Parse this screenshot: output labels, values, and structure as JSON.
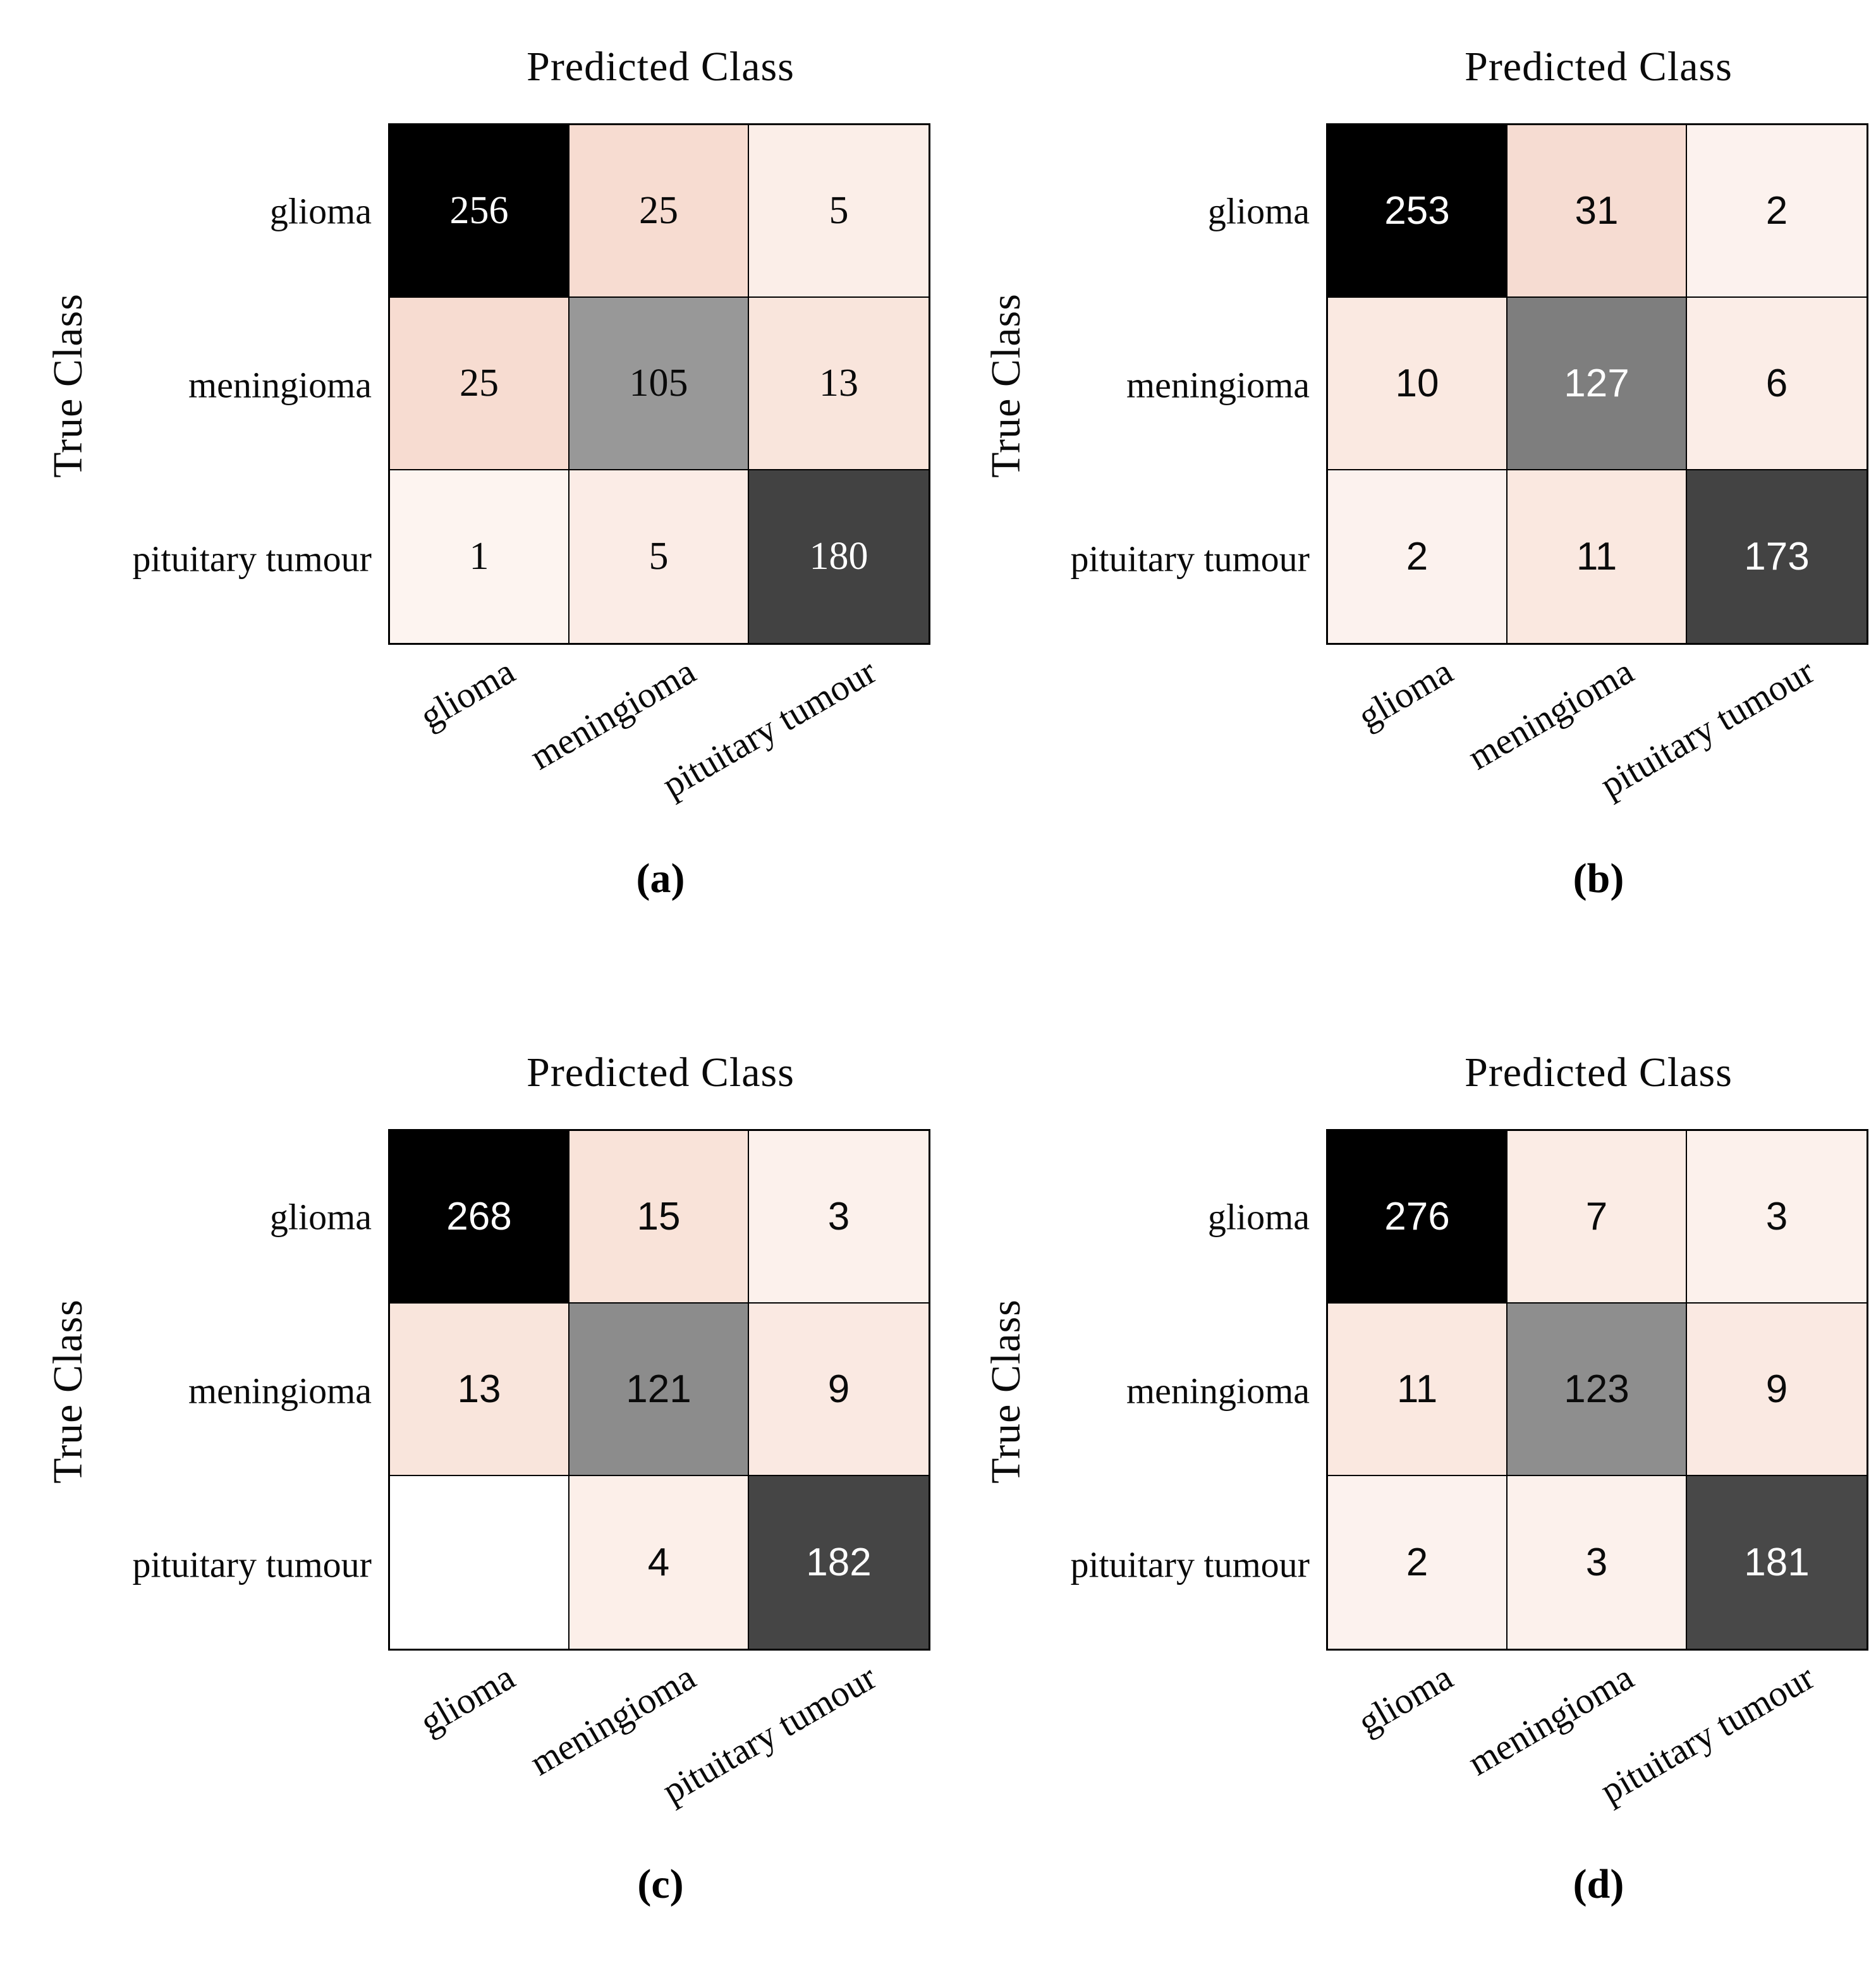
{
  "figure": {
    "type": "confusion-matrix-comparison",
    "background": "#ffffff",
    "classes": [
      "glioma",
      "meningioma",
      "pituitary tumour"
    ],
    "x_axis_title": "Predicted Class",
    "y_axis_title": "True Class",
    "captions": [
      "(a)",
      "(b)",
      "(c)",
      "(d)"
    ]
  },
  "chart_data": [
    {
      "type": "heatmap",
      "title": "Predicted Class",
      "xlabel": "Predicted Class",
      "ylabel": "True Class",
      "caption": "(a)",
      "x_categories": [
        "glioma",
        "meningioma",
        "pituitary tumour"
      ],
      "y_categories": [
        "glioma",
        "meningioma",
        "pituitary tumour"
      ],
      "matrix": [
        [
          256,
          25,
          5
        ],
        [
          25,
          105,
          13
        ],
        [
          1,
          5,
          180
        ]
      ],
      "legend": "none",
      "grid": "on"
    },
    {
      "type": "heatmap",
      "title": "Predicted Class",
      "xlabel": "Predicted Class",
      "ylabel": "True Class",
      "caption": "(b)",
      "x_categories": [
        "glioma",
        "meningioma",
        "pituitary tumour"
      ],
      "y_categories": [
        "glioma",
        "meningioma",
        "pituitary tumour"
      ],
      "matrix": [
        [
          253,
          31,
          2
        ],
        [
          10,
          127,
          6
        ],
        [
          2,
          11,
          173
        ]
      ],
      "legend": "none",
      "grid": "on"
    },
    {
      "type": "heatmap",
      "title": "Predicted Class",
      "xlabel": "Predicted Class",
      "ylabel": "True Class",
      "caption": "(c)",
      "x_categories": [
        "glioma",
        "meningioma",
        "pituitary tumour"
      ],
      "y_categories": [
        "glioma",
        "meningioma",
        "pituitary tumour"
      ],
      "matrix": [
        [
          268,
          15,
          3
        ],
        [
          13,
          121,
          9
        ],
        [
          0,
          4,
          182
        ]
      ],
      "blank_cells": [
        [
          2,
          0
        ]
      ],
      "legend": "none",
      "grid": "on"
    },
    {
      "type": "heatmap",
      "title": "Predicted Class",
      "xlabel": "Predicted Class",
      "ylabel": "True Class",
      "caption": "(d)",
      "x_categories": [
        "glioma",
        "meningioma",
        "pituitary tumour"
      ],
      "y_categories": [
        "glioma",
        "meningioma",
        "pituitary tumour"
      ],
      "matrix": [
        [
          276,
          7,
          3
        ],
        [
          11,
          123,
          9
        ],
        [
          2,
          3,
          181
        ]
      ],
      "legend": "none",
      "grid": "on"
    }
  ],
  "panels": [
    {
      "caption": "(a)",
      "title": "Predicted Class",
      "y_axis_label": "True Class",
      "row_labels": [
        "glioma",
        "meningioma",
        "pituitary tumour"
      ],
      "col_labels": [
        "glioma",
        "meningioma",
        "pituitary tumour"
      ],
      "cells": [
        [
          {
            "value": "256",
            "bg": "#000000",
            "fg": "#ffffff"
          },
          {
            "value": "25",
            "bg": "#f7dcd1",
            "fg": "#0a0a0a"
          },
          {
            "value": "5",
            "bg": "#fbeee8",
            "fg": "#0a0a0a"
          }
        ],
        [
          {
            "value": "25",
            "bg": "#f7dcd1",
            "fg": "#0a0a0a"
          },
          {
            "value": "105",
            "bg": "#989898",
            "fg": "#0a0a0a"
          },
          {
            "value": "13",
            "bg": "#f9e5dc",
            "fg": "#0a0a0a"
          }
        ],
        [
          {
            "value": "1",
            "bg": "#fdf4f0",
            "fg": "#0a0a0a"
          },
          {
            "value": "5",
            "bg": "#fbece6",
            "fg": "#0a0a0a"
          },
          {
            "value": "180",
            "bg": "#424242",
            "fg": "#ffffff"
          }
        ]
      ]
    },
    {
      "caption": "(b)",
      "title": "Predicted Class",
      "y_axis_label": "True Class",
      "row_labels": [
        "glioma",
        "meningioma",
        "pituitary tumour"
      ],
      "col_labels": [
        "glioma",
        "meningioma",
        "pituitary tumour"
      ],
      "cells": [
        [
          {
            "value": "253",
            "bg": "#000000",
            "fg": "#ffffff"
          },
          {
            "value": "31",
            "bg": "#f6dcd2",
            "fg": "#0a0a0a"
          },
          {
            "value": "2",
            "bg": "#fcf2ee",
            "fg": "#0a0a0a"
          }
        ],
        [
          {
            "value": "10",
            "bg": "#fae9e1",
            "fg": "#0a0a0a"
          },
          {
            "value": "127",
            "bg": "#7e7e7e",
            "fg": "#ffffff"
          },
          {
            "value": "6",
            "bg": "#fbede7",
            "fg": "#0a0a0a"
          }
        ],
        [
          {
            "value": "2",
            "bg": "#fcf2ee",
            "fg": "#0a0a0a"
          },
          {
            "value": "11",
            "bg": "#fae8e0",
            "fg": "#0a0a0a"
          },
          {
            "value": "173",
            "bg": "#434343",
            "fg": "#ffffff"
          }
        ]
      ]
    },
    {
      "caption": "(c)",
      "title": "Predicted Class",
      "y_axis_label": "True Class",
      "row_labels": [
        "glioma",
        "meningioma",
        "pituitary tumour"
      ],
      "col_labels": [
        "glioma",
        "meningioma",
        "pituitary tumour"
      ],
      "cells": [
        [
          {
            "value": "268",
            "bg": "#000000",
            "fg": "#ffffff"
          },
          {
            "value": "15",
            "bg": "#f9e3d9",
            "fg": "#0a0a0a"
          },
          {
            "value": "3",
            "bg": "#fcf1ec",
            "fg": "#0a0a0a"
          }
        ],
        [
          {
            "value": "13",
            "bg": "#f9e5dc",
            "fg": "#0a0a0a"
          },
          {
            "value": "121",
            "bg": "#8c8c8c",
            "fg": "#0a0a0a"
          },
          {
            "value": "9",
            "bg": "#fae9e2",
            "fg": "#0a0a0a"
          }
        ],
        [
          {
            "value": "",
            "bg": "#ffffff",
            "fg": "#0a0a0a"
          },
          {
            "value": "4",
            "bg": "#fcefe9",
            "fg": "#0a0a0a"
          },
          {
            "value": "182",
            "bg": "#454545",
            "fg": "#ffffff"
          }
        ]
      ]
    },
    {
      "caption": "(d)",
      "title": "Predicted Class",
      "y_axis_label": "True Class",
      "row_labels": [
        "glioma",
        "meningioma",
        "pituitary tumour"
      ],
      "col_labels": [
        "glioma",
        "meningioma",
        "pituitary tumour"
      ],
      "cells": [
        [
          {
            "value": "276",
            "bg": "#000000",
            "fg": "#ffffff"
          },
          {
            "value": "7",
            "bg": "#fbece5",
            "fg": "#0a0a0a"
          },
          {
            "value": "3",
            "bg": "#fcf1ec",
            "fg": "#0a0a0a"
          }
        ],
        [
          {
            "value": "11",
            "bg": "#fae8e0",
            "fg": "#0a0a0a"
          },
          {
            "value": "123",
            "bg": "#8e8e8e",
            "fg": "#0a0a0a"
          },
          {
            "value": "9",
            "bg": "#fae9e2",
            "fg": "#0a0a0a"
          }
        ],
        [
          {
            "value": "2",
            "bg": "#fcf2ee",
            "fg": "#0a0a0a"
          },
          {
            "value": "3",
            "bg": "#fcf1ec",
            "fg": "#0a0a0a"
          },
          {
            "value": "181",
            "bg": "#484848",
            "fg": "#ffffff"
          }
        ]
      ]
    }
  ]
}
